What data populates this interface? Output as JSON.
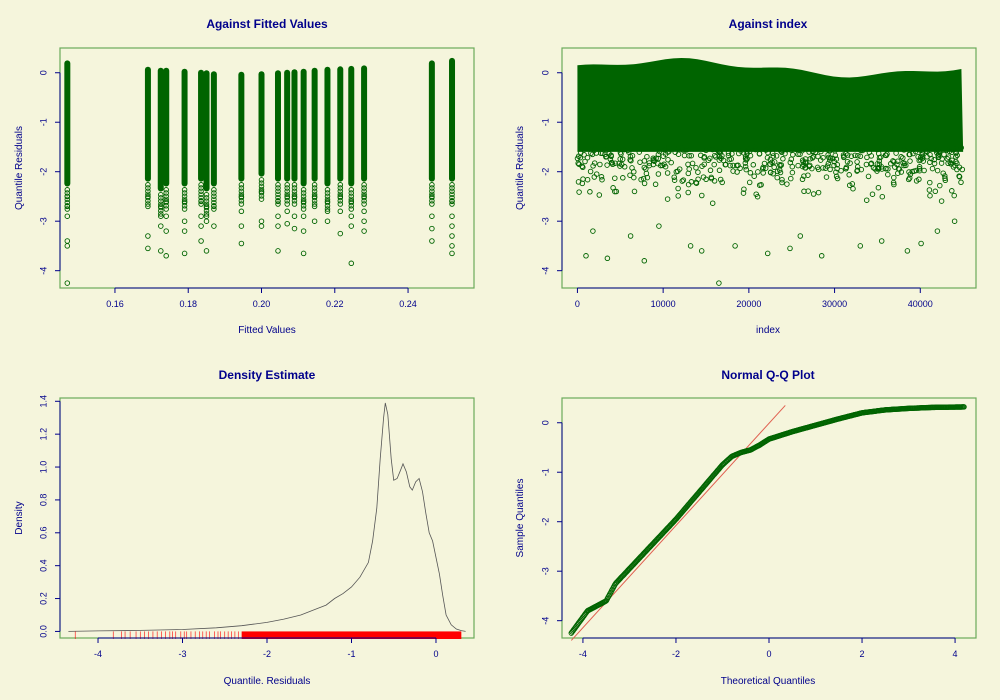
{
  "chart_data": [
    {
      "type": "scatter",
      "title": "Against Fitted Values",
      "xlabel": "Fitted Values",
      "ylabel": "Quantile Residuals",
      "xlim": [
        0.145,
        0.258
      ],
      "ylim": [
        -4.35,
        0.5
      ],
      "xticks": [
        0.16,
        0.18,
        0.2,
        0.22,
        0.24
      ],
      "xtick_labels": [
        "0.16",
        "0.18",
        "0.20",
        "0.22",
        "0.24"
      ],
      "yticks": [
        0,
        -1,
        -2,
        -3,
        -4
      ],
      "ytick_labels": [
        "0",
        "-1",
        "-2",
        "-3",
        "-4"
      ],
      "columns": [
        {
          "x": 0.147,
          "top": 0.25,
          "dense_bottom": -2.3,
          "outliers": [
            -2.5,
            -2.7,
            -2.9,
            -3.4,
            -3.5,
            -4.25
          ]
        },
        {
          "x": 0.169,
          "top": 0.12,
          "dense_bottom": -2.2,
          "outliers": [
            -2.5,
            -2.7,
            -3.3,
            -3.55
          ]
        },
        {
          "x": 0.1725,
          "top": 0.1,
          "dense_bottom": -2.4,
          "outliers": [
            -2.7,
            -2.9,
            -3.1,
            -3.6
          ]
        },
        {
          "x": 0.174,
          "top": 0.1,
          "dense_bottom": -2.3,
          "outliers": [
            -2.6,
            -2.9,
            -3.2,
            -3.7
          ]
        },
        {
          "x": 0.179,
          "top": 0.08,
          "dense_bottom": -2.3,
          "outliers": [
            -2.6,
            -3.0,
            -3.2,
            -3.65
          ]
        },
        {
          "x": 0.1835,
          "top": 0.06,
          "dense_bottom": -2.2,
          "outliers": [
            -2.6,
            -2.9,
            -3.1,
            -3.4
          ]
        },
        {
          "x": 0.185,
          "top": 0.05,
          "dense_bottom": -2.4,
          "outliers": [
            -2.7,
            -2.9,
            -3.0,
            -3.6
          ]
        },
        {
          "x": 0.187,
          "top": 0.03,
          "dense_bottom": -2.3,
          "outliers": [
            -2.7,
            -3.1
          ]
        },
        {
          "x": 0.1945,
          "top": 0.02,
          "dense_bottom": -2.2,
          "outliers": [
            -2.5,
            -2.8,
            -3.1,
            -3.45
          ]
        },
        {
          "x": 0.2,
          "top": 0.03,
          "dense_bottom": -2.1,
          "outliers": [
            -2.4,
            -3.0,
            -3.1
          ]
        },
        {
          "x": 0.2045,
          "top": 0.05,
          "dense_bottom": -2.2,
          "outliers": [
            -2.6,
            -2.9,
            -3.1,
            -3.6
          ]
        },
        {
          "x": 0.207,
          "top": 0.06,
          "dense_bottom": -2.2,
          "outliers": [
            -2.5,
            -2.8,
            -3.05
          ]
        },
        {
          "x": 0.209,
          "top": 0.07,
          "dense_bottom": -2.2,
          "outliers": [
            -2.5,
            -2.9,
            -3.15
          ]
        },
        {
          "x": 0.2115,
          "top": 0.08,
          "dense_bottom": -2.3,
          "outliers": [
            -2.6,
            -2.9,
            -3.2,
            -3.65
          ]
        },
        {
          "x": 0.2145,
          "top": 0.1,
          "dense_bottom": -2.2,
          "outliers": [
            -2.5,
            -2.7,
            -3.0
          ]
        },
        {
          "x": 0.218,
          "top": 0.12,
          "dense_bottom": -2.3,
          "outliers": [
            -2.6,
            -2.8,
            -3.0
          ]
        },
        {
          "x": 0.2215,
          "top": 0.13,
          "dense_bottom": -2.2,
          "outliers": [
            -2.5,
            -2.8,
            -3.25
          ]
        },
        {
          "x": 0.2245,
          "top": 0.14,
          "dense_bottom": -2.3,
          "outliers": [
            -2.6,
            -2.9,
            -3.1,
            -3.85
          ]
        },
        {
          "x": 0.228,
          "top": 0.15,
          "dense_bottom": -2.2,
          "outliers": [
            -2.5,
            -2.8,
            -3.0,
            -3.2
          ]
        },
        {
          "x": 0.2465,
          "top": 0.25,
          "dense_bottom": -2.2,
          "outliers": [
            -2.5,
            -2.9,
            -3.15,
            -3.4
          ]
        },
        {
          "x": 0.252,
          "top": 0.3,
          "dense_bottom": -2.2,
          "outliers": [
            -2.6,
            -2.9,
            -3.1,
            -3.3,
            -3.5,
            -3.65
          ]
        }
      ]
    },
    {
      "type": "scatter",
      "title": "Against  index",
      "xlabel": "index",
      "ylabel": "Quantile Residuals",
      "xlim": [
        -1800,
        46500
      ],
      "ylim": [
        -4.35,
        0.5
      ],
      "xticks": [
        0,
        10000,
        20000,
        30000,
        40000
      ],
      "xtick_labels": [
        "0",
        "10000",
        "20000",
        "30000",
        "40000"
      ],
      "yticks": [
        0,
        -1,
        -2,
        -3,
        -4
      ],
      "ytick_labels": [
        "0",
        "-1",
        "-2",
        "-3",
        "-4"
      ],
      "n_points": 45000,
      "dense_band": {
        "x_from": 0,
        "x_to": 45000,
        "y_top_near": 0.25,
        "y_bottom_near": -1.6
      },
      "outliers": [
        [
          1000,
          -3.7
        ],
        [
          3500,
          -3.75
        ],
        [
          7800,
          -3.8
        ],
        [
          13200,
          -3.5
        ],
        [
          14500,
          -3.6
        ],
        [
          16500,
          -4.25
        ],
        [
          18400,
          -3.5
        ],
        [
          22200,
          -3.65
        ],
        [
          24800,
          -3.55
        ],
        [
          28500,
          -3.7
        ],
        [
          33000,
          -3.5
        ],
        [
          38500,
          -3.6
        ],
        [
          40100,
          -3.45
        ],
        [
          1800,
          -3.2
        ],
        [
          6200,
          -3.3
        ],
        [
          42000,
          -3.2
        ],
        [
          44000,
          -3.0
        ],
        [
          9500,
          -3.1
        ],
        [
          26000,
          -3.3
        ],
        [
          35500,
          -3.4
        ]
      ]
    },
    {
      "type": "line",
      "title": "Density Estimate",
      "xlabel": "Quantile. Residuals",
      "ylabel": "Density",
      "xlim": [
        -4.45,
        0.45
      ],
      "ylim": [
        -0.04,
        1.42
      ],
      "xticks": [
        -4,
        -3,
        -2,
        -1,
        0
      ],
      "xtick_labels": [
        "-4",
        "-3",
        "-2",
        "-1",
        "0"
      ],
      "yticks": [
        0,
        0.2,
        0.4,
        0.6,
        0.8,
        1.0,
        1.2,
        1.4
      ],
      "ytick_labels": [
        "0.0",
        "0.2",
        "0.4",
        "0.6",
        "0.8",
        "1.0",
        "1.2",
        "1.4"
      ],
      "x": [
        -4.35,
        -4.0,
        -3.5,
        -3.0,
        -2.6,
        -2.3,
        -2.0,
        -1.8,
        -1.6,
        -1.4,
        -1.3,
        -1.2,
        -1.1,
        -1.0,
        -0.9,
        -0.8,
        -0.75,
        -0.7,
        -0.66,
        -0.62,
        -0.6,
        -0.57,
        -0.53,
        -0.5,
        -0.46,
        -0.42,
        -0.39,
        -0.35,
        -0.31,
        -0.28,
        -0.24,
        -0.2,
        -0.16,
        -0.12,
        -0.08,
        -0.04,
        0.0,
        0.04,
        0.08,
        0.12,
        0.18,
        0.24,
        0.3,
        0.35
      ],
      "y": [
        0.0,
        0.003,
        0.006,
        0.012,
        0.022,
        0.035,
        0.055,
        0.075,
        0.1,
        0.14,
        0.16,
        0.2,
        0.23,
        0.27,
        0.33,
        0.42,
        0.55,
        0.75,
        1.05,
        1.3,
        1.39,
        1.32,
        1.05,
        0.92,
        0.93,
        0.98,
        1.02,
        0.97,
        0.88,
        0.86,
        0.91,
        0.93,
        0.85,
        0.72,
        0.6,
        0.55,
        0.45,
        0.35,
        0.22,
        0.1,
        0.04,
        0.015,
        0.005,
        0.0
      ],
      "rug": {
        "from": -2.3,
        "to": 0.3,
        "sparse": [
          -4.27,
          -3.82,
          -3.72,
          -3.68,
          -3.62,
          -3.55,
          -3.5,
          -3.45,
          -3.4,
          -3.35,
          -3.3,
          -3.25,
          -3.2,
          -3.15,
          -3.12,
          -3.08,
          -3.02,
          -2.98,
          -2.95,
          -2.9,
          -2.85,
          -2.8,
          -2.76,
          -2.72,
          -2.68,
          -2.62,
          -2.58,
          -2.55,
          -2.5,
          -2.46,
          -2.42,
          -2.38,
          -2.34
        ]
      }
    },
    {
      "type": "scatter",
      "title": "Normal Q-Q Plot",
      "xlabel": "Theoretical Quantiles",
      "ylabel": "Sample Quantiles",
      "xlim": [
        -4.45,
        4.45
      ],
      "ylim": [
        -4.35,
        0.5
      ],
      "xticks": [
        -4,
        -2,
        0,
        2,
        4
      ],
      "xtick_labels": [
        "-4",
        "-2",
        "0",
        "2",
        "4"
      ],
      "yticks": [
        0,
        -1,
        -2,
        -3,
        -4
      ],
      "ytick_labels": [
        "0",
        "-1",
        "-2",
        "-3",
        "-4"
      ],
      "qq_curve": {
        "x": [
          -4.25,
          -3.9,
          -3.5,
          -3.3,
          -3.0,
          -2.5,
          -2.0,
          -1.5,
          -1.0,
          -0.8,
          -0.6,
          -0.4,
          -0.2,
          0.0,
          0.5,
          1.0,
          1.5,
          2.0,
          2.5,
          3.0,
          3.5,
          4.2
        ],
        "y": [
          -4.25,
          -3.8,
          -3.6,
          -3.25,
          -2.95,
          -2.45,
          -1.95,
          -1.4,
          -0.85,
          -0.68,
          -0.6,
          -0.55,
          -0.45,
          -0.33,
          -0.18,
          -0.05,
          0.08,
          0.2,
          0.26,
          0.29,
          0.31,
          0.32
        ]
      },
      "reference_line": {
        "x": [
          -4.25,
          0.35
        ],
        "y": [
          -4.4,
          0.35
        ]
      }
    }
  ]
}
